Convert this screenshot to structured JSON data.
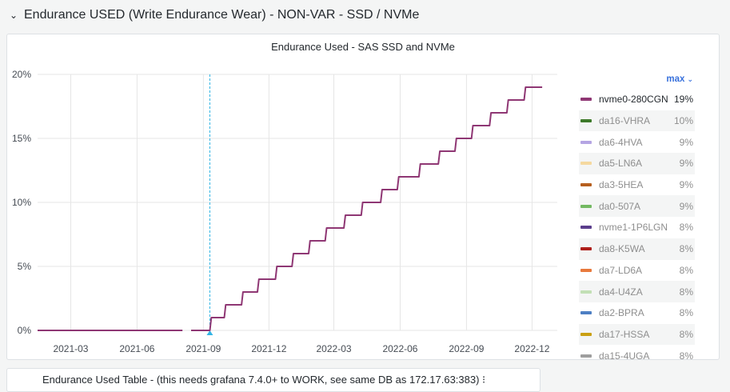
{
  "row": {
    "title": "Endurance USED (Write Endurance Wear) - NON-VAR - SSD / NVMe",
    "chevron": "⌄"
  },
  "panel": {
    "title": "Endurance Used - SAS SSD and NVMe"
  },
  "legend": {
    "header": "max",
    "header_icon": "chevron-down-icon",
    "items": [
      {
        "name": "nvme0-280CGN",
        "value": "19%",
        "color": "#8f3774",
        "active": true
      },
      {
        "name": "da16-VHRA",
        "value": "10%",
        "color": "#3e7a2b"
      },
      {
        "name": "da6-4HVA",
        "value": "9%",
        "color": "#b5a5e3"
      },
      {
        "name": "da5-LN6A",
        "value": "9%",
        "color": "#f5d9a0"
      },
      {
        "name": "da3-5HEA",
        "value": "9%",
        "color": "#b65f1e"
      },
      {
        "name": "da0-507A",
        "value": "9%",
        "color": "#73b962"
      },
      {
        "name": "nvme1-1P6LGN",
        "value": "8%",
        "color": "#5b3e8c"
      },
      {
        "name": "da8-K5WA",
        "value": "8%",
        "color": "#ae1f1b"
      },
      {
        "name": "da7-LD6A",
        "value": "8%",
        "color": "#e8793c"
      },
      {
        "name": "da4-U4ZA",
        "value": "8%",
        "color": "#c2dfb5"
      },
      {
        "name": "da2-BPRA",
        "value": "8%",
        "color": "#4d7fc3"
      },
      {
        "name": "da17-HSSA",
        "value": "8%",
        "color": "#caa012"
      },
      {
        "name": "da15-4UGA",
        "value": "8%",
        "color": "#9e9e9e"
      }
    ]
  },
  "bottom_panel": {
    "title": "Endurance Used Table - (this needs grafana 7.4.0+ to WORK, see same DB as 172.17.63:383) ⁝"
  },
  "chart_data": {
    "type": "line",
    "x_ticks": [
      "2021-03",
      "2021-06",
      "2021-09",
      "2021-12",
      "2022-03",
      "2022-06",
      "2022-09",
      "2022-12"
    ],
    "y_ticks": [
      "0%",
      "5%",
      "10%",
      "15%",
      "20%"
    ],
    "ylim": [
      0,
      20
    ],
    "xlim": [
      "2021-01-14",
      "2023-01-05"
    ],
    "grid": true,
    "cursor_x": "2021-09-10",
    "series": [
      {
        "name": "nvme0-280CGN",
        "color": "#8f3774",
        "points": [
          [
            "2021-01-14",
            0
          ],
          [
            "2021-08-03",
            0
          ],
          [
            "2021-08-10",
            null
          ],
          [
            "2021-08-15",
            0
          ],
          [
            "2021-09-10",
            0
          ],
          [
            "2021-09-12",
            1
          ],
          [
            "2021-09-30",
            1
          ],
          [
            "2021-10-02",
            2
          ],
          [
            "2021-10-24",
            2
          ],
          [
            "2021-10-26",
            3
          ],
          [
            "2021-11-15",
            3
          ],
          [
            "2021-11-17",
            4
          ],
          [
            "2021-12-10",
            4
          ],
          [
            "2021-12-12",
            5
          ],
          [
            "2022-01-02",
            5
          ],
          [
            "2022-01-04",
            6
          ],
          [
            "2022-01-25",
            6
          ],
          [
            "2022-01-27",
            7
          ],
          [
            "2022-02-17",
            7
          ],
          [
            "2022-02-19",
            8
          ],
          [
            "2022-03-15",
            8
          ],
          [
            "2022-03-17",
            9
          ],
          [
            "2022-04-08",
            9
          ],
          [
            "2022-04-10",
            10
          ],
          [
            "2022-05-05",
            10
          ],
          [
            "2022-05-07",
            11
          ],
          [
            "2022-05-28",
            11
          ],
          [
            "2022-05-30",
            12
          ],
          [
            "2022-06-27",
            12
          ],
          [
            "2022-06-29",
            13
          ],
          [
            "2022-07-24",
            13
          ],
          [
            "2022-07-26",
            14
          ],
          [
            "2022-08-16",
            14
          ],
          [
            "2022-08-18",
            15
          ],
          [
            "2022-09-08",
            15
          ],
          [
            "2022-09-10",
            16
          ],
          [
            "2022-10-03",
            16
          ],
          [
            "2022-10-05",
            17
          ],
          [
            "2022-10-27",
            17
          ],
          [
            "2022-10-29",
            18
          ],
          [
            "2022-11-20",
            18
          ],
          [
            "2022-11-22",
            19
          ],
          [
            "2022-12-15",
            19
          ]
        ]
      }
    ]
  }
}
